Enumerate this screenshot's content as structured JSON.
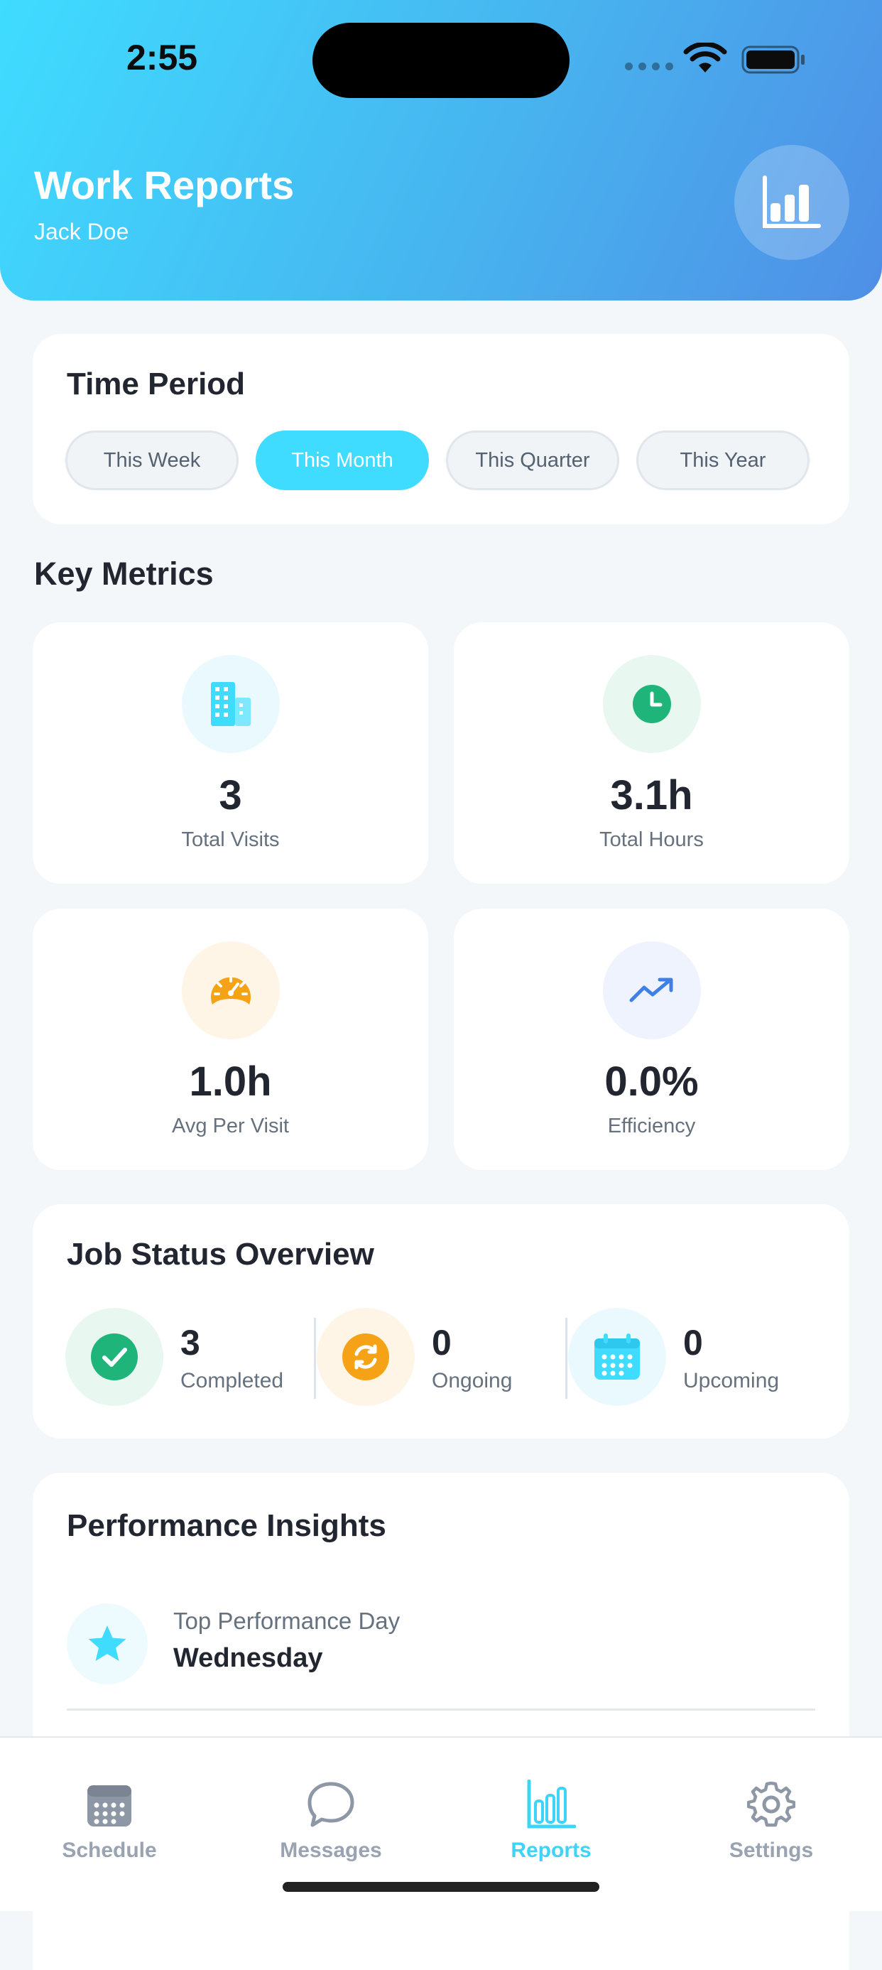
{
  "status_bar": {
    "time": "2:55"
  },
  "header": {
    "title": "Work Reports",
    "user": "Jack Doe",
    "action_icon": "bar-chart-icon"
  },
  "time_period": {
    "title": "Time Period",
    "options": [
      "This Week",
      "This Month",
      "This Quarter",
      "This Year"
    ],
    "selected": "This Month"
  },
  "key_metrics": {
    "title": "Key Metrics",
    "items": [
      {
        "value": "3",
        "label": "Total Visits",
        "icon": "building-icon",
        "color": "#40dcff"
      },
      {
        "value": "3.1h",
        "label": "Total Hours",
        "icon": "clock-icon",
        "color": "#1fb57a"
      },
      {
        "value": "1.0h",
        "label": "Avg Per Visit",
        "icon": "speedometer-icon",
        "color": "#f5a216"
      },
      {
        "value": "0.0%",
        "label": "Efficiency",
        "icon": "trending-up-icon",
        "color": "#3f7fe6"
      }
    ]
  },
  "job_status": {
    "title": "Job Status Overview",
    "items": [
      {
        "value": "0",
        "label": "Ongoing"
      },
      {
        "value": "0",
        "label": "Upcoming"
      }
    ],
    "completed": {
      "value": "3",
      "label": "Completed"
    }
  },
  "insights": {
    "title": "Performance Insights",
    "top_day_label": "Top Performance Day",
    "top_day_value": "Wednesday"
  },
  "tabs": [
    {
      "label": "Schedule",
      "icon": "calendar-icon"
    },
    {
      "label": "Messages",
      "icon": "chat-bubble-icon"
    },
    {
      "label": "Reports",
      "icon": "bar-chart-icon",
      "active": true
    },
    {
      "label": "Settings",
      "icon": "gear-icon"
    }
  ]
}
